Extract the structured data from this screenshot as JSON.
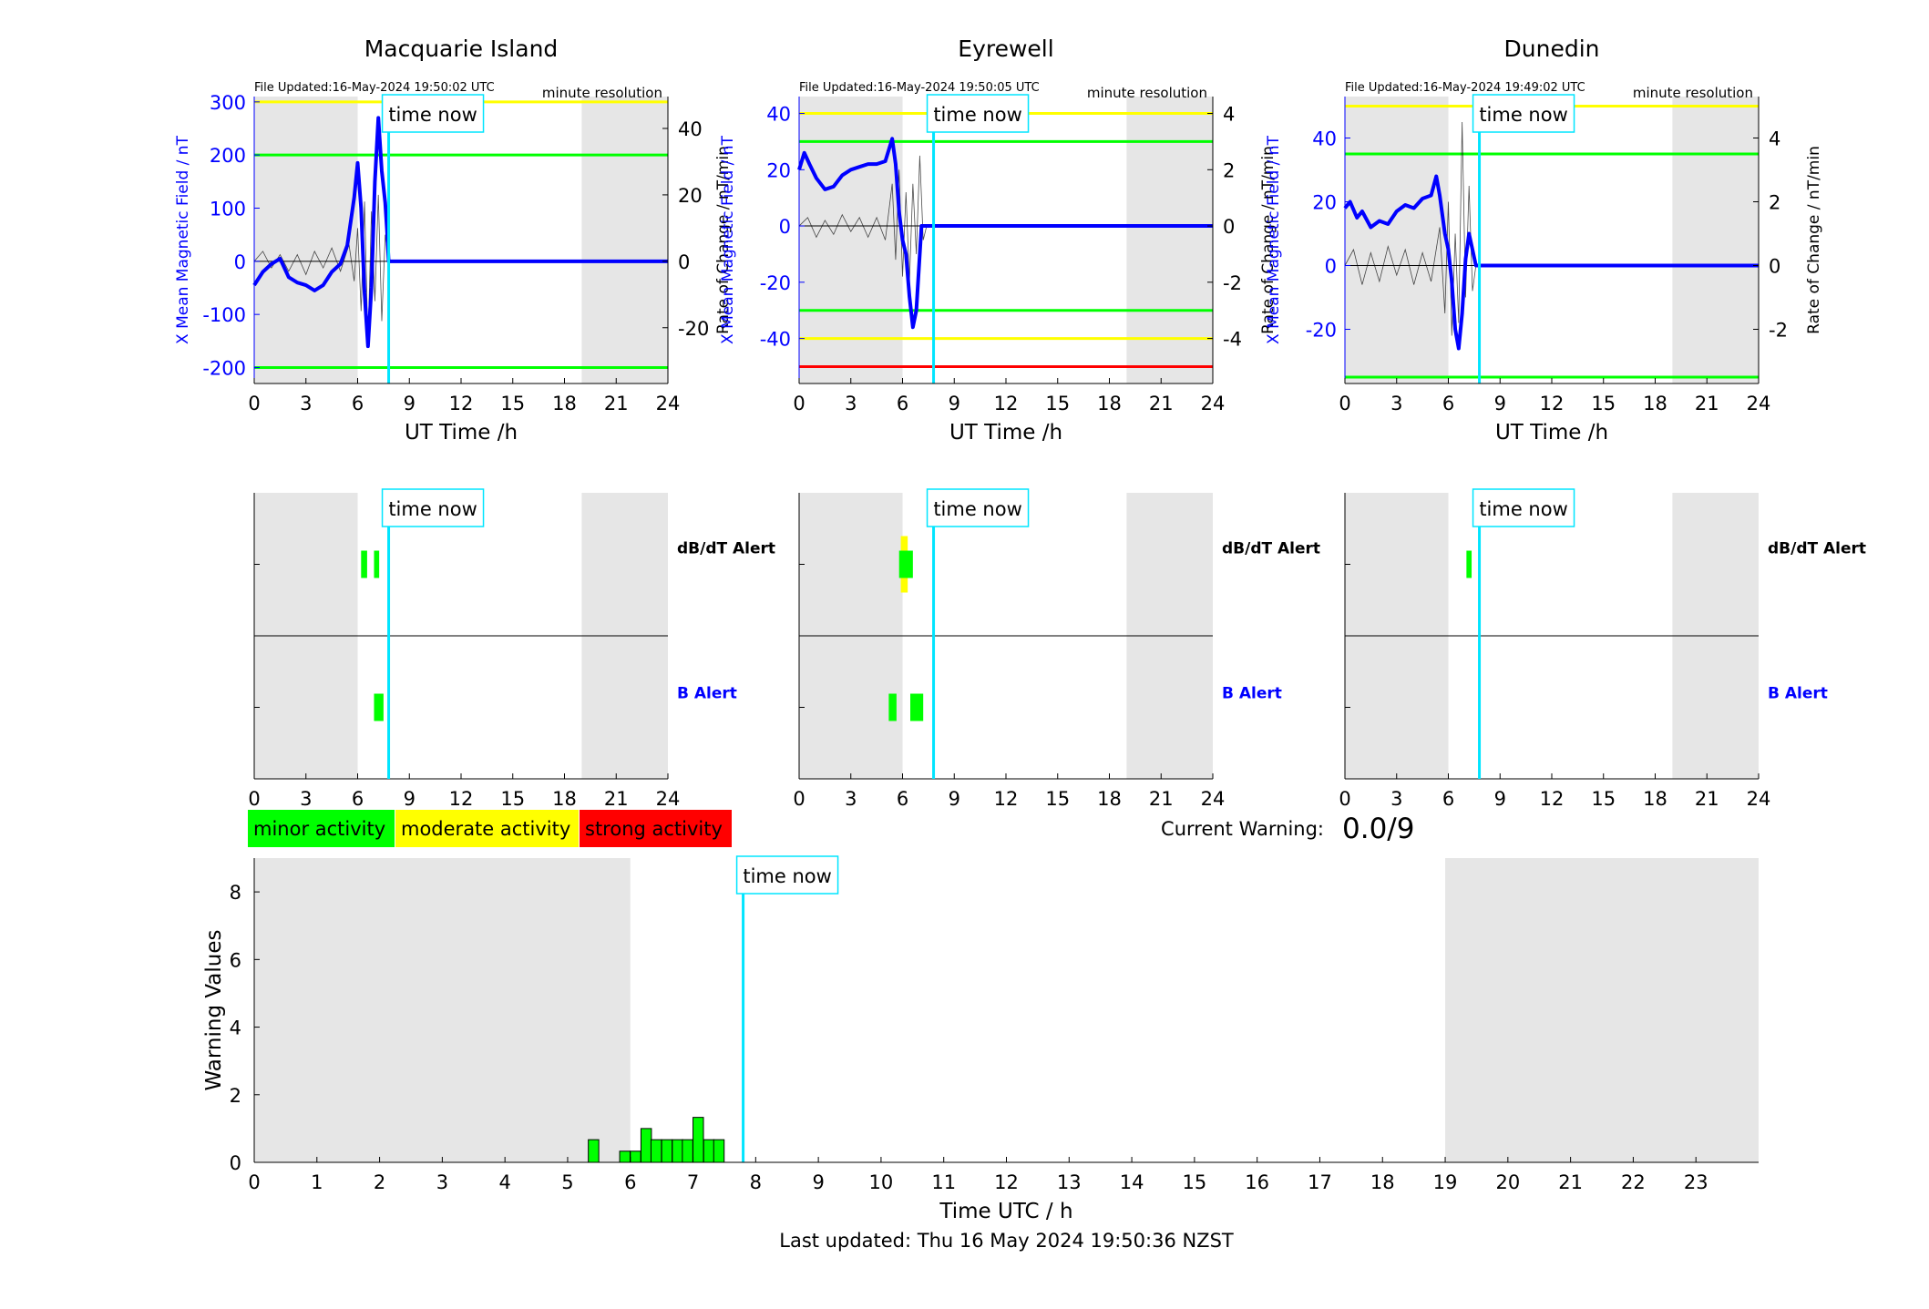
{
  "figure": {
    "time_now_label": "time now",
    "current_warning_label": "Current Warning:",
    "current_warning_value": "0.0/9",
    "last_updated": "Last updated: Thu 16 May 2024 19:50:36 NZST",
    "legend": [
      {
        "label": "minor activity",
        "color": "#00ff00"
      },
      {
        "label": "moderate activity",
        "color": "#ffff00"
      },
      {
        "label": "strong activity",
        "color": "#ff0000"
      }
    ],
    "colors": {
      "x_field": "#0000ff",
      "rate": "#000000",
      "time_now": "#00e5ff",
      "night_shade": "#e6e6e6",
      "minor": "#00ff00",
      "moderate": "#ffff00",
      "strong": "#ff0000"
    }
  },
  "chart_data": [
    {
      "type": "line",
      "title": "Macquarie Island",
      "file_updated": "File Updated:16-May-2024 19:50:02 UTC",
      "resolution": "minute resolution",
      "xlabel": "UT Time /h",
      "ylabel_left": "X Mean Magnetic Field / nT",
      "ylabel_right": "Rate of Change / nT/min",
      "xlim": [
        0,
        24
      ],
      "xticks": [
        0,
        3,
        6,
        9,
        12,
        15,
        18,
        21,
        24
      ],
      "ylim_left": [
        -230,
        310
      ],
      "yticks_left": [
        -200,
        -100,
        0,
        100,
        200,
        300
      ],
      "ylim_right": [
        -36.8,
        49.6
      ],
      "yticks_right": [
        -20,
        0,
        20,
        40
      ],
      "night_shade": [
        [
          0,
          6
        ],
        [
          19,
          24
        ]
      ],
      "time_now": 7.8,
      "thresholds": [
        {
          "value": 300,
          "level": "moderate"
        },
        {
          "value": 200,
          "level": "minor"
        },
        {
          "value": -200,
          "level": "minor"
        }
      ],
      "x_field_series": [
        [
          0,
          -45
        ],
        [
          0.5,
          -20
        ],
        [
          1,
          -5
        ],
        [
          1.5,
          5
        ],
        [
          2,
          -30
        ],
        [
          2.5,
          -40
        ],
        [
          3,
          -45
        ],
        [
          3.5,
          -55
        ],
        [
          4,
          -45
        ],
        [
          4.5,
          -20
        ],
        [
          5,
          -5
        ],
        [
          5.4,
          30
        ],
        [
          5.8,
          120
        ],
        [
          6.0,
          185
        ],
        [
          6.2,
          100
        ],
        [
          6.4,
          -60
        ],
        [
          6.6,
          -160
        ],
        [
          6.8,
          -50
        ],
        [
          7.0,
          150
        ],
        [
          7.2,
          270
        ],
        [
          7.4,
          170
        ],
        [
          7.6,
          110
        ],
        [
          7.7,
          60
        ],
        [
          7.8,
          0
        ],
        [
          24,
          0
        ]
      ],
      "rate_series": [
        [
          0,
          0
        ],
        [
          0.5,
          3
        ],
        [
          1,
          -2
        ],
        [
          1.5,
          2
        ],
        [
          2,
          -3
        ],
        [
          2.5,
          2
        ],
        [
          3,
          -4
        ],
        [
          3.5,
          3
        ],
        [
          4,
          -2
        ],
        [
          4.5,
          4
        ],
        [
          5,
          -3
        ],
        [
          5.5,
          5
        ],
        [
          5.8,
          -6
        ],
        [
          6,
          10
        ],
        [
          6.2,
          -15
        ],
        [
          6.4,
          18
        ],
        [
          6.6,
          -25
        ],
        [
          6.8,
          15
        ],
        [
          7.0,
          -12
        ],
        [
          7.2,
          20
        ],
        [
          7.4,
          -18
        ],
        [
          7.6,
          8
        ],
        [
          7.8,
          0
        ],
        [
          24,
          0
        ]
      ],
      "alerts": {
        "dbdt_label": "dB/dT Alert",
        "b_label": "B Alert",
        "dbdt": [
          {
            "start": 6.2,
            "end": 6.55,
            "level": "minor"
          },
          {
            "start": 6.95,
            "end": 7.25,
            "level": "minor"
          }
        ],
        "b": [
          {
            "start": 6.95,
            "end": 7.5,
            "level": "minor"
          }
        ]
      }
    },
    {
      "type": "line",
      "title": "Eyrewell",
      "file_updated": "File Updated:16-May-2024 19:50:05 UTC",
      "resolution": "minute resolution",
      "xlabel": "UT Time /h",
      "ylabel_left": "X Mean Magnetic Field / nT",
      "ylabel_right": "Rate of Change / nT/min",
      "xlim": [
        0,
        24
      ],
      "xticks": [
        0,
        3,
        6,
        9,
        12,
        15,
        18,
        21,
        24
      ],
      "ylim_left": [
        -56,
        46
      ],
      "yticks_left": [
        -40,
        -20,
        0,
        20,
        40
      ],
      "ylim_right": [
        -5.6,
        4.6
      ],
      "yticks_right": [
        -4,
        -2,
        0,
        2,
        4
      ],
      "night_shade": [
        [
          0,
          6
        ],
        [
          19,
          24
        ]
      ],
      "time_now": 7.8,
      "thresholds": [
        {
          "value": 40,
          "level": "moderate"
        },
        {
          "value": 30,
          "level": "minor"
        },
        {
          "value": -30,
          "level": "minor"
        },
        {
          "value": -40,
          "level": "moderate"
        },
        {
          "value": -50,
          "level": "strong"
        }
      ],
      "x_field_series": [
        [
          0,
          20
        ],
        [
          0.3,
          26
        ],
        [
          0.6,
          22
        ],
        [
          1,
          17
        ],
        [
          1.5,
          13
        ],
        [
          2,
          14
        ],
        [
          2.5,
          18
        ],
        [
          3,
          20
        ],
        [
          3.5,
          21
        ],
        [
          4,
          22
        ],
        [
          4.5,
          22
        ],
        [
          5,
          23
        ],
        [
          5.4,
          31
        ],
        [
          5.6,
          22
        ],
        [
          5.8,
          5
        ],
        [
          6.0,
          -5
        ],
        [
          6.2,
          -10
        ],
        [
          6.4,
          -25
        ],
        [
          6.6,
          -36
        ],
        [
          6.8,
          -30
        ],
        [
          7.0,
          -10
        ],
        [
          7.1,
          0
        ],
        [
          24,
          0
        ]
      ],
      "rate_series": [
        [
          0,
          0
        ],
        [
          0.5,
          0.3
        ],
        [
          1,
          -0.4
        ],
        [
          1.5,
          0.2
        ],
        [
          2,
          -0.3
        ],
        [
          2.5,
          0.4
        ],
        [
          3,
          -0.2
        ],
        [
          3.5,
          0.3
        ],
        [
          4,
          -0.4
        ],
        [
          4.5,
          0.3
        ],
        [
          5,
          -0.5
        ],
        [
          5.4,
          1.5
        ],
        [
          5.6,
          -1.2
        ],
        [
          5.8,
          2.0
        ],
        [
          6.0,
          -1.8
        ],
        [
          6.2,
          1.2
        ],
        [
          6.4,
          -2.0
        ],
        [
          6.6,
          1.5
        ],
        [
          6.8,
          -1.0
        ],
        [
          7.0,
          2.5
        ],
        [
          7.2,
          -0.5
        ],
        [
          7.4,
          0
        ],
        [
          24,
          0
        ]
      ],
      "alerts": {
        "dbdt_label": "dB/dT Alert",
        "b_label": "B Alert",
        "dbdt": [
          {
            "start": 5.9,
            "end": 6.3,
            "level": "moderate"
          },
          {
            "start": 5.8,
            "end": 6.6,
            "level": "minor"
          }
        ],
        "b": [
          {
            "start": 5.2,
            "end": 5.65,
            "level": "minor"
          },
          {
            "start": 6.45,
            "end": 7.2,
            "level": "minor"
          }
        ]
      }
    },
    {
      "type": "line",
      "title": "Dunedin",
      "file_updated": "File Updated:16-May-2024 19:49:02 UTC",
      "resolution": "minute resolution",
      "xlabel": "UT Time /h",
      "ylabel_left": "X Mean Magnetic Field / nT",
      "ylabel_right": "Rate of Change / nT/min",
      "xlim": [
        0,
        24
      ],
      "xticks": [
        0,
        3,
        6,
        9,
        12,
        15,
        18,
        21,
        24
      ],
      "ylim_left": [
        -37,
        53
      ],
      "yticks_left": [
        -20,
        0,
        20,
        40
      ],
      "ylim_right": [
        -3.7,
        5.3
      ],
      "yticks_right": [
        -2,
        0,
        2,
        4
      ],
      "night_shade": [
        [
          0,
          6
        ],
        [
          19,
          24
        ]
      ],
      "time_now": 7.8,
      "thresholds": [
        {
          "value": 50,
          "level": "moderate"
        },
        {
          "value": 35,
          "level": "minor"
        },
        {
          "value": -35,
          "level": "minor"
        }
      ],
      "x_field_series": [
        [
          0,
          18
        ],
        [
          0.3,
          20
        ],
        [
          0.7,
          15
        ],
        [
          1,
          17
        ],
        [
          1.5,
          12
        ],
        [
          2,
          14
        ],
        [
          2.5,
          13
        ],
        [
          3,
          17
        ],
        [
          3.5,
          19
        ],
        [
          4,
          18
        ],
        [
          4.5,
          21
        ],
        [
          5,
          22
        ],
        [
          5.3,
          28
        ],
        [
          5.5,
          22
        ],
        [
          5.8,
          10
        ],
        [
          6.0,
          5
        ],
        [
          6.2,
          -5
        ],
        [
          6.4,
          -20
        ],
        [
          6.6,
          -26
        ],
        [
          6.8,
          -15
        ],
        [
          7.0,
          2
        ],
        [
          7.2,
          10
        ],
        [
          7.4,
          5
        ],
        [
          7.6,
          0
        ],
        [
          24,
          0
        ]
      ],
      "rate_series": [
        [
          0,
          0
        ],
        [
          0.5,
          0.5
        ],
        [
          1,
          -0.6
        ],
        [
          1.5,
          0.4
        ],
        [
          2,
          -0.5
        ],
        [
          2.5,
          0.6
        ],
        [
          3,
          -0.3
        ],
        [
          3.5,
          0.5
        ],
        [
          4,
          -0.6
        ],
        [
          4.5,
          0.4
        ],
        [
          5,
          -0.5
        ],
        [
          5.5,
          1.2
        ],
        [
          5.8,
          -1.5
        ],
        [
          6.0,
          2.0
        ],
        [
          6.2,
          -2.2
        ],
        [
          6.4,
          1.0
        ],
        [
          6.6,
          -1.8
        ],
        [
          6.8,
          4.5
        ],
        [
          7.0,
          -1.0
        ],
        [
          7.2,
          2.5
        ],
        [
          7.4,
          -0.8
        ],
        [
          7.6,
          0
        ],
        [
          24,
          0
        ]
      ],
      "alerts": {
        "dbdt_label": "dB/dT Alert",
        "b_label": "B Alert",
        "dbdt": [
          {
            "start": 7.05,
            "end": 7.35,
            "level": "minor"
          }
        ],
        "b": []
      }
    },
    {
      "type": "bar",
      "xlabel": "Time UTC / h",
      "ylabel": "Warning Values",
      "xlim": [
        0,
        24
      ],
      "xticks": [
        0,
        1,
        2,
        3,
        4,
        5,
        6,
        7,
        8,
        9,
        10,
        11,
        12,
        13,
        14,
        15,
        16,
        17,
        18,
        19,
        20,
        21,
        22,
        23
      ],
      "ylim": [
        0,
        9
      ],
      "yticks": [
        0,
        2,
        4,
        6,
        8
      ],
      "night_shade": [
        [
          0,
          6
        ],
        [
          19,
          24
        ]
      ],
      "time_now": 7.8,
      "bar_width": 0.1667,
      "bars": [
        [
          5.33,
          0.67
        ],
        [
          5.83,
          0.33
        ],
        [
          6.0,
          0.33
        ],
        [
          6.17,
          1.0
        ],
        [
          6.33,
          0.67
        ],
        [
          6.5,
          0.67
        ],
        [
          6.67,
          0.67
        ],
        [
          6.83,
          0.67
        ],
        [
          7.0,
          1.33
        ],
        [
          7.17,
          0.67
        ],
        [
          7.33,
          0.67
        ]
      ]
    }
  ]
}
